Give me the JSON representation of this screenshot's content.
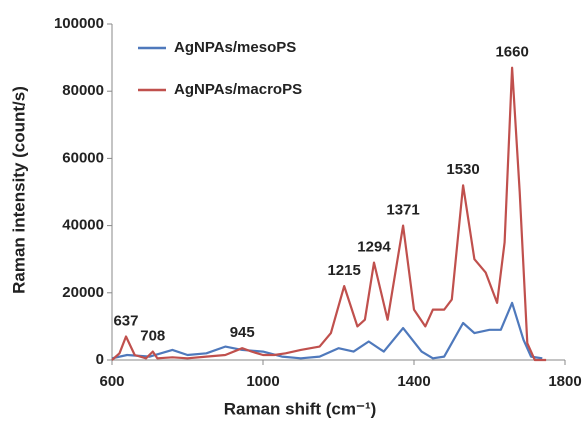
{
  "chart_data": {
    "type": "line",
    "xlabel": "Raman shift (cm⁻¹)",
    "ylabel": "Raman intensity (count/s)",
    "xlim": [
      600,
      1800
    ],
    "xticks": [
      600,
      1000,
      1400,
      1800
    ],
    "ylim": [
      0,
      100000
    ],
    "yticks": [
      0,
      20000,
      40000,
      60000,
      80000,
      100000
    ],
    "legend": "upper left",
    "series": [
      {
        "name": "AgNPAs/mesoPS",
        "color": "#4f79bc",
        "x": [
          600,
          640,
          700,
          760,
          800,
          850,
          900,
          945,
          1000,
          1050,
          1100,
          1150,
          1200,
          1240,
          1280,
          1320,
          1371,
          1420,
          1450,
          1480,
          1530,
          1560,
          1600,
          1630,
          1660,
          1690,
          1710,
          1740
        ],
        "values": [
          500,
          1500,
          1000,
          3000,
          1500,
          2000,
          4000,
          3000,
          2500,
          1000,
          500,
          1000,
          3500,
          2500,
          5500,
          2500,
          9500,
          2500,
          500,
          1000,
          11000,
          8000,
          9000,
          9000,
          17000,
          6000,
          1000,
          500
        ]
      },
      {
        "name": "AgNPAs/macroPS",
        "color": "#c0504d",
        "x": [
          600,
          620,
          637,
          660,
          690,
          708,
          720,
          760,
          800,
          850,
          900,
          945,
          970,
          1000,
          1030,
          1060,
          1100,
          1150,
          1180,
          1215,
          1250,
          1270,
          1294,
          1330,
          1371,
          1400,
          1430,
          1450,
          1480,
          1500,
          1530,
          1560,
          1590,
          1620,
          1640,
          1660,
          1680,
          1700,
          1720,
          1750
        ],
        "values": [
          0,
          2000,
          7000,
          1500,
          500,
          2500,
          500,
          800,
          500,
          1000,
          1500,
          3500,
          2500,
          1500,
          1500,
          2000,
          3000,
          4000,
          8000,
          22000,
          10000,
          12000,
          29000,
          12000,
          40000,
          15000,
          10000,
          15000,
          15000,
          18000,
          52000,
          30000,
          26000,
          17000,
          35000,
          87000,
          50000,
          5000,
          0,
          0
        ]
      }
    ],
    "annotations": [
      {
        "x": 637,
        "y": 7000,
        "label": "637"
      },
      {
        "x": 708,
        "y": 2500,
        "label": "708"
      },
      {
        "x": 945,
        "y": 3500,
        "label": "945"
      },
      {
        "x": 1215,
        "y": 22000,
        "label": "1215"
      },
      {
        "x": 1294,
        "y": 29000,
        "label": "1294"
      },
      {
        "x": 1371,
        "y": 40000,
        "label": "1371"
      },
      {
        "x": 1530,
        "y": 52000,
        "label": "1530"
      },
      {
        "x": 1660,
        "y": 87000,
        "label": "1660"
      }
    ]
  }
}
